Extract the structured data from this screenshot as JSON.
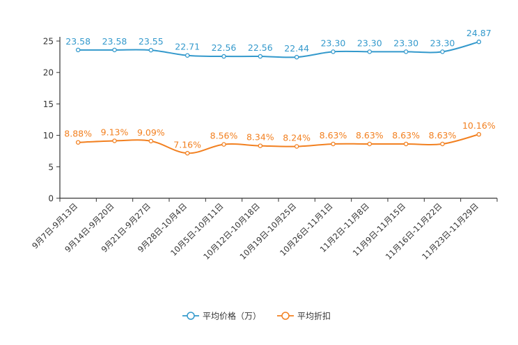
{
  "chart_data": {
    "type": "line",
    "title": "",
    "xlabel": "",
    "ylabel": "",
    "ylim": [
      0,
      25
    ],
    "yticks": [
      0,
      5,
      10,
      15,
      20,
      25
    ],
    "grid": false,
    "legend_position": "bottom-center",
    "categories": [
      "9月7日-9月13日",
      "9月14日-9月20日",
      "9月21日-9月27日",
      "9月28日-10月4日",
      "10月5日-10月11日",
      "10月12日-10月18日",
      "10月19日-10月25日",
      "10月26日-11月1日",
      "11月2日-11月8日",
      "11月9日-11月15日",
      "11月16日-11月22日",
      "11月23日-11月29日"
    ],
    "series": [
      {
        "name": "平均价格（万）",
        "color": "#3399cc",
        "values": [
          23.58,
          23.58,
          23.55,
          22.71,
          22.56,
          22.56,
          22.44,
          23.3,
          23.3,
          23.3,
          23.3,
          24.87
        ],
        "labels": [
          "23.58",
          "23.58",
          "23.55",
          "22.71",
          "22.56",
          "22.56",
          "22.44",
          "23.30",
          "23.30",
          "23.30",
          "23.30",
          "24.87"
        ]
      },
      {
        "name": "平均折扣",
        "color": "#f28020",
        "values": [
          8.88,
          9.13,
          9.09,
          7.16,
          8.56,
          8.34,
          8.24,
          8.63,
          8.63,
          8.63,
          8.63,
          10.16
        ],
        "labels": [
          "8.88%",
          "9.13%",
          "9.09%",
          "7.16%",
          "8.56%",
          "8.34%",
          "8.24%",
          "8.63%",
          "8.63%",
          "8.63%",
          "8.63%",
          "10.16%"
        ]
      }
    ]
  }
}
